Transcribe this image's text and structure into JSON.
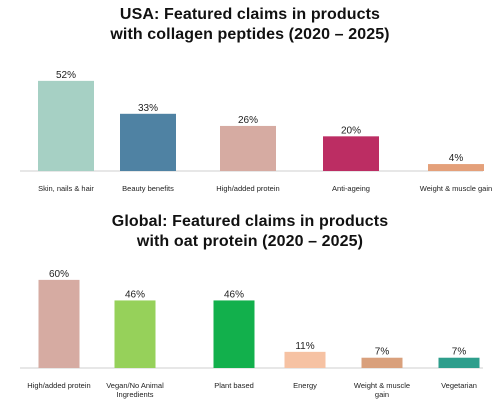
{
  "chart_data": [
    {
      "type": "bar",
      "title": "USA: Featured claims in products with collagen peptides (2020 – 2025)",
      "title_lines": [
        "USA: Featured claims in products",
        "with collagen peptides (2020 – 2025)"
      ],
      "categories": [
        "Skin, nails & hair",
        "Beauty benefits",
        "High/added protein",
        "Anti-ageing",
        "Weight & muscle gain"
      ],
      "values": [
        52,
        33,
        26,
        20,
        4
      ],
      "value_labels": [
        "52%",
        "33%",
        "26%",
        "20%",
        "4%"
      ],
      "colors": [
        "#a6d0c4",
        "#4f82a3",
        "#d6aba2",
        "#bc2d63",
        "#e4a07a"
      ],
      "ylim": [
        0,
        60
      ],
      "unit": "%",
      "xlabel": "",
      "ylabel": "",
      "grid": false,
      "legend": "none"
    },
    {
      "type": "bar",
      "title": "Global: Featured claims in products with oat protein (2020 – 2025)",
      "title_lines": [
        "Global: Featured claims in products",
        "with oat protein (2020 – 2025)"
      ],
      "categories": [
        "High/added protein",
        "Vegan/No Animal Ingredients",
        "Plant based",
        "Energy",
        "Weight & muscle gain",
        "Vegetarian"
      ],
      "category_lines": [
        [
          "High/added protein"
        ],
        [
          "Vegan/No Animal",
          "Ingredients"
        ],
        [
          "Plant based"
        ],
        [
          "Energy"
        ],
        [
          "Weight & muscle",
          "gain"
        ],
        [
          "Vegetarian"
        ]
      ],
      "values": [
        60,
        46,
        46,
        11,
        7,
        7
      ],
      "value_labels": [
        "60%",
        "46%",
        "46%",
        "11%",
        "7%",
        "7%"
      ],
      "colors": [
        "#d6aba2",
        "#96d15a",
        "#12b04c",
        "#f6c2a3",
        "#d9a07c",
        "#2e9e8c"
      ],
      "ylim": [
        0,
        64
      ],
      "unit": "%",
      "xlabel": "",
      "ylabel": "",
      "grid": false,
      "legend": "none"
    }
  ]
}
